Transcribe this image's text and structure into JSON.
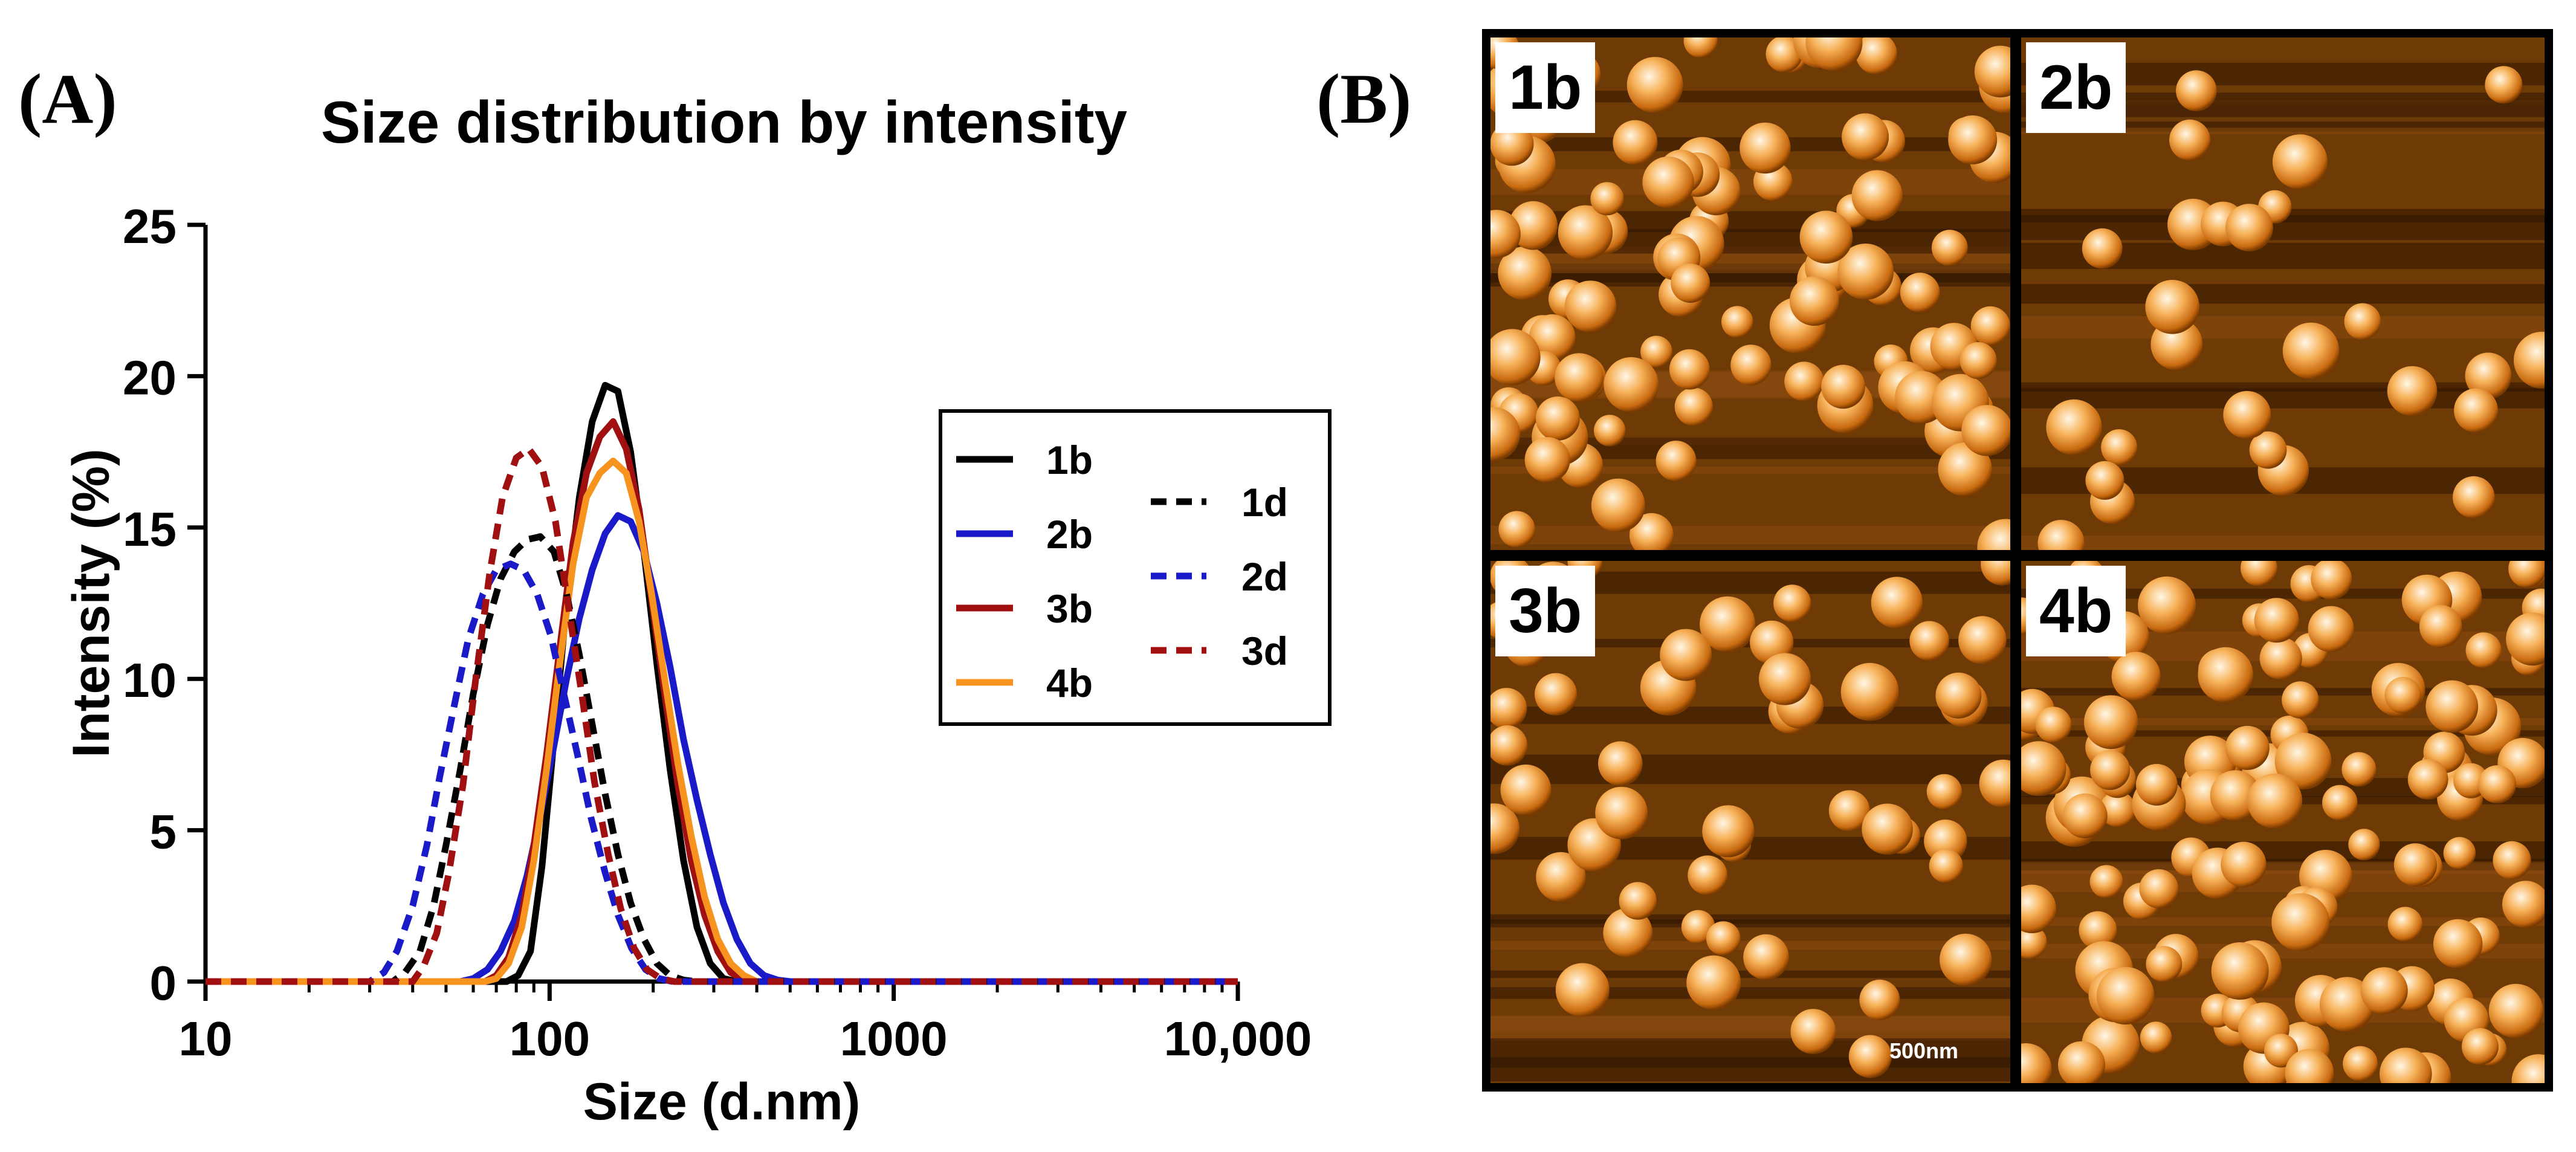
{
  "panel_a_label": "(A)",
  "panel_b_label": "(B)",
  "chart_data": {
    "type": "line",
    "title": "Size distribution by intensity",
    "xlabel": "Size (d.nm)",
    "ylabel": "Intensity (%)",
    "xscale": "log",
    "xlim": [
      10,
      10000
    ],
    "ylim": [
      0,
      25
    ],
    "xticks": [
      10,
      100,
      1000,
      10000
    ],
    "xtick_labels": [
      "10",
      "100",
      "1000",
      "10,000"
    ],
    "yticks": [
      0,
      5,
      10,
      15,
      20,
      25
    ],
    "ytick_labels": [
      "0",
      "5",
      "10",
      "15",
      "20",
      "25"
    ],
    "legend_position": "right",
    "series": [
      {
        "name": "1b",
        "color": "#000000",
        "dashed": false,
        "x": [
          10,
          75,
          81,
          88,
          95,
          103,
          112,
          122,
          133,
          145,
          158,
          172,
          188,
          205,
          224,
          245,
          268,
          293,
          320,
          350,
          10000
        ],
        "y": [
          0,
          0,
          0.2,
          1.0,
          3.8,
          8.0,
          12.5,
          16.0,
          18.5,
          19.7,
          19.5,
          17.5,
          14.2,
          10.5,
          7.0,
          4.0,
          1.8,
          0.6,
          0.1,
          0,
          0
        ]
      },
      {
        "name": "2b",
        "color": "#1a1ac8",
        "dashed": false,
        "x": [
          10,
          55,
          60,
          66,
          72,
          79,
          86,
          94,
          103,
          112,
          122,
          133,
          145,
          158,
          172,
          188,
          205,
          224,
          245,
          268,
          293,
          320,
          350,
          383,
          420,
          460,
          500,
          10000
        ],
        "y": [
          0,
          0,
          0.1,
          0.4,
          1.0,
          2.0,
          3.5,
          5.5,
          7.8,
          10.0,
          12.0,
          13.6,
          14.8,
          15.4,
          15.2,
          14.2,
          12.5,
          10.4,
          8.0,
          6.0,
          4.2,
          2.6,
          1.4,
          0.6,
          0.2,
          0.05,
          0,
          0
        ]
      },
      {
        "name": "3b",
        "color": "#a01010",
        "dashed": false,
        "x": [
          10,
          65,
          70,
          76,
          83,
          90,
          98,
          107,
          117,
          128,
          140,
          153,
          167,
          182,
          198,
          216,
          236,
          258,
          282,
          308,
          336,
          367,
          400,
          10000
        ],
        "y": [
          0,
          0,
          0.2,
          0.8,
          2.2,
          4.5,
          7.5,
          11.0,
          14.5,
          16.8,
          18.0,
          18.5,
          17.6,
          15.6,
          12.6,
          9.5,
          6.5,
          4.0,
          2.2,
          1.0,
          0.3,
          0.05,
          0,
          0
        ]
      },
      {
        "name": "4b",
        "color": "#f79420",
        "dashed": false,
        "x": [
          10,
          65,
          70,
          76,
          83,
          90,
          98,
          107,
          117,
          128,
          140,
          153,
          167,
          182,
          198,
          216,
          236,
          258,
          282,
          308,
          336,
          367,
          400,
          436,
          10000
        ],
        "y": [
          0,
          0,
          0.1,
          0.6,
          1.8,
          4.0,
          7.0,
          10.5,
          13.8,
          16.0,
          16.8,
          17.2,
          16.8,
          15.2,
          12.8,
          10.0,
          7.2,
          4.8,
          2.8,
          1.4,
          0.6,
          0.2,
          0,
          0,
          0
        ]
      },
      {
        "name": "1d",
        "color": "#000000",
        "dashed": true,
        "x": [
          10,
          35,
          38,
          42,
          46,
          50,
          55,
          60,
          66,
          72,
          79,
          86,
          94,
          103,
          112,
          122,
          133,
          145,
          158,
          172,
          188,
          205,
          224,
          245,
          268,
          10000
        ],
        "y": [
          0,
          0,
          0.3,
          1.0,
          2.5,
          4.5,
          7.0,
          9.5,
          11.8,
          13.3,
          14.2,
          14.6,
          14.7,
          14.2,
          12.8,
          10.8,
          8.5,
          6.2,
          4.2,
          2.6,
          1.4,
          0.6,
          0.2,
          0.05,
          0,
          0
        ]
      },
      {
        "name": "2d",
        "color": "#1a1ac8",
        "dashed": true,
        "x": [
          10,
          30,
          33,
          36,
          40,
          44,
          48,
          53,
          58,
          64,
          70,
          77,
          84,
          92,
          101,
          110,
          121,
          132,
          145,
          158,
          173,
          190,
          208,
          228,
          10000
        ],
        "y": [
          0,
          0,
          0.3,
          1.0,
          2.5,
          4.5,
          6.8,
          9.2,
          11.3,
          12.8,
          13.6,
          13.8,
          13.6,
          12.8,
          11.4,
          9.5,
          7.4,
          5.4,
          3.6,
          2.2,
          1.1,
          0.4,
          0.1,
          0,
          0
        ]
      },
      {
        "name": "3d",
        "color": "#a01010",
        "dashed": true,
        "x": [
          10,
          40,
          43,
          47,
          51,
          56,
          61,
          67,
          73,
          80,
          87,
          95,
          104,
          113,
          124,
          135,
          148,
          161,
          176,
          192,
          210,
          230,
          10000
        ],
        "y": [
          0,
          0,
          0.5,
          1.6,
          3.6,
          6.5,
          10.0,
          13.5,
          16.0,
          17.3,
          17.6,
          17.0,
          15.2,
          12.5,
          9.5,
          6.6,
          4.2,
          2.4,
          1.1,
          0.4,
          0.1,
          0,
          0
        ]
      }
    ]
  },
  "afm_panels": [
    {
      "label": "1b"
    },
    {
      "label": "2b"
    },
    {
      "label": "3b",
      "scale_bar": "500nm"
    },
    {
      "label": "4b"
    }
  ]
}
